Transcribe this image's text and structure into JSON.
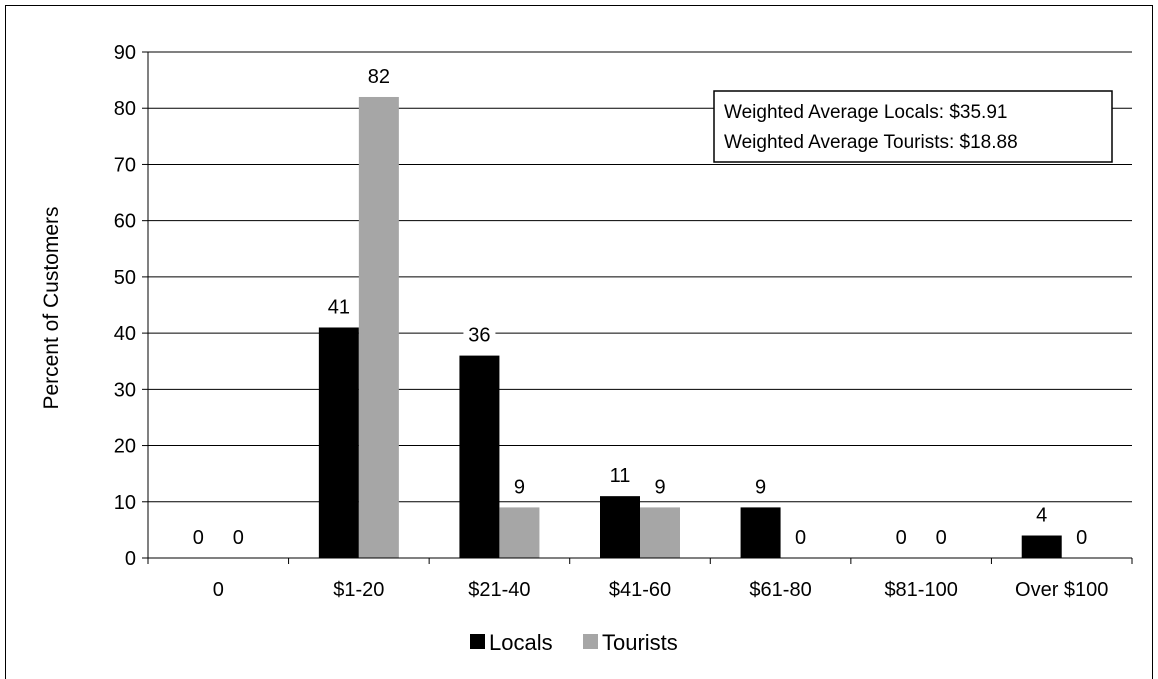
{
  "chart_data": {
    "type": "bar",
    "categories": [
      "0",
      "$1-20",
      "$21-40",
      "$41-60",
      "$61-80",
      "$81-100",
      "Over $100"
    ],
    "series": [
      {
        "name": "Locals",
        "values": [
          0,
          41,
          36,
          11,
          9,
          0,
          4
        ],
        "labels": [
          "0",
          "41",
          "36",
          "11",
          "9",
          "0",
          "4"
        ],
        "color": "#000000"
      },
      {
        "name": "Tourists",
        "values": [
          0,
          82,
          9,
          9,
          0,
          0,
          0
        ],
        "labels": [
          "0",
          "82",
          "9",
          "9",
          "0",
          "0",
          "0"
        ],
        "color": "#a6a6a6"
      }
    ],
    "ylabel": "Percent of Customers",
    "xlabel": "",
    "ylim": [
      0,
      90
    ],
    "yticks": [
      "0",
      "10",
      "20",
      "30",
      "40",
      "50",
      "60",
      "70",
      "80",
      "90"
    ],
    "grid": true,
    "legend_position": "bottom",
    "annotation": {
      "lines": [
        "Weighted Average Locals: $35.91",
        "Weighted Average Tourists: $18.88"
      ]
    }
  }
}
